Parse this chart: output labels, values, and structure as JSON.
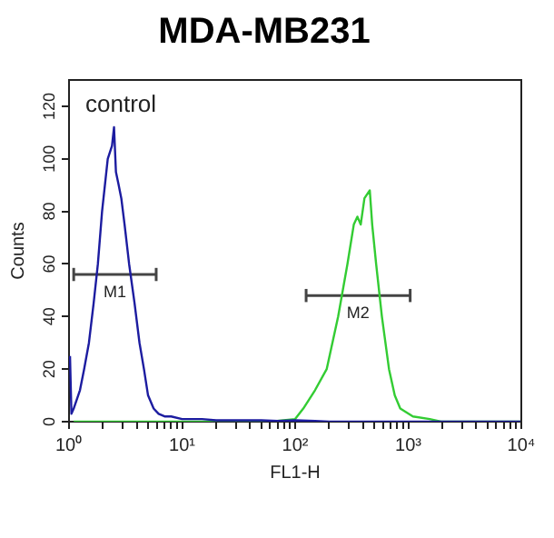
{
  "chart_data": {
    "type": "line",
    "title": "MDA-MB231",
    "xlabel": "FL1-H",
    "ylabel": "Counts",
    "log": "x",
    "grid": false,
    "legend": false,
    "xlim": [
      1,
      10000
    ],
    "ylim": [
      0,
      130
    ],
    "yticks": [
      0,
      20,
      40,
      60,
      80,
      100,
      120
    ],
    "xticks": [
      {
        "value": 1,
        "label": "10⁰"
      },
      {
        "value": 2,
        "label": null
      },
      {
        "value": 3,
        "label": null
      },
      {
        "value": 4,
        "label": null
      },
      {
        "value": 5,
        "label": null
      },
      {
        "value": 6,
        "label": null
      },
      {
        "value": 7,
        "label": null
      },
      {
        "value": 8,
        "label": null
      },
      {
        "value": 9,
        "label": null
      },
      {
        "value": 10,
        "label": "10¹"
      },
      {
        "value": 20,
        "label": null
      },
      {
        "value": 30,
        "label": null
      },
      {
        "value": 40,
        "label": null
      },
      {
        "value": 50,
        "label": null
      },
      {
        "value": 60,
        "label": null
      },
      {
        "value": 70,
        "label": null
      },
      {
        "value": 80,
        "label": null
      },
      {
        "value": 90,
        "label": null
      },
      {
        "value": 100,
        "label": "10²"
      },
      {
        "value": 200,
        "label": null
      },
      {
        "value": 300,
        "label": null
      },
      {
        "value": 400,
        "label": null
      },
      {
        "value": 500,
        "label": null
      },
      {
        "value": 600,
        "label": null
      },
      {
        "value": 700,
        "label": null
      },
      {
        "value": 800,
        "label": null
      },
      {
        "value": 900,
        "label": null
      },
      {
        "value": 1000,
        "label": "10³"
      },
      {
        "value": 2000,
        "label": null
      },
      {
        "value": 3000,
        "label": null
      },
      {
        "value": 4000,
        "label": null
      },
      {
        "value": 5000,
        "label": null
      },
      {
        "value": 6000,
        "label": null
      },
      {
        "value": 7000,
        "label": null
      },
      {
        "value": 8000,
        "label": null
      },
      {
        "value": 9000,
        "label": null
      },
      {
        "value": 10000,
        "label": "10⁴"
      }
    ],
    "series": [
      {
        "color": "#1c1ca0",
        "marker": "none",
        "x": [
          1.02,
          1.05,
          1.1,
          1.25,
          1.36,
          1.5,
          1.65,
          1.8,
          1.96,
          2.2,
          2.4,
          2.5,
          2.6,
          2.75,
          2.9,
          3.1,
          3.4,
          3.8,
          4.2,
          4.6,
          5.0,
          5.6,
          6.2,
          7,
          8,
          10,
          15,
          20,
          30,
          50,
          70,
          100,
          150,
          200,
          500,
          1000,
          3000,
          10000
        ],
        "values": [
          25,
          3,
          5,
          12,
          20,
          30,
          45,
          60,
          80,
          100,
          105,
          112,
          95,
          90,
          85,
          75,
          60,
          45,
          30,
          20,
          10,
          5,
          3,
          2,
          2,
          1,
          1,
          0.5,
          0.5,
          0.5,
          0.3,
          0.5,
          0.3,
          0,
          0,
          0,
          0,
          0
        ]
      },
      {
        "color": "#33cc33",
        "marker": "none",
        "x": [
          1.1,
          10,
          30,
          60,
          100,
          118,
          150,
          190,
          240,
          290,
          330,
          355,
          380,
          410,
          457,
          480,
          520,
          585,
          676,
          760,
          850,
          1100,
          1550,
          1950,
          10000
        ],
        "values": [
          0,
          0,
          0,
          0,
          1,
          5,
          12,
          20,
          40,
          60,
          75,
          78,
          75,
          85,
          88,
          75,
          60,
          40,
          20,
          10,
          5,
          2,
          1,
          0,
          0
        ]
      },
      {
        "color": "#444444",
        "marker": "none",
        "x": [
          1.1,
          5.9
        ],
        "values": [
          56,
          56
        ],
        "errors": [
          2.5,
          2.5
        ]
      },
      {
        "color": "#444444",
        "marker": "none",
        "x": [
          125,
          1040
        ],
        "values": [
          48,
          48
        ],
        "errors": [
          2.5,
          2.5
        ]
      }
    ],
    "annotations": [
      "control",
      {
        "text": "M1",
        "x": 2.55,
        "y": 56
      },
      {
        "text": "M2",
        "x": 360,
        "y": 48
      }
    ]
  }
}
